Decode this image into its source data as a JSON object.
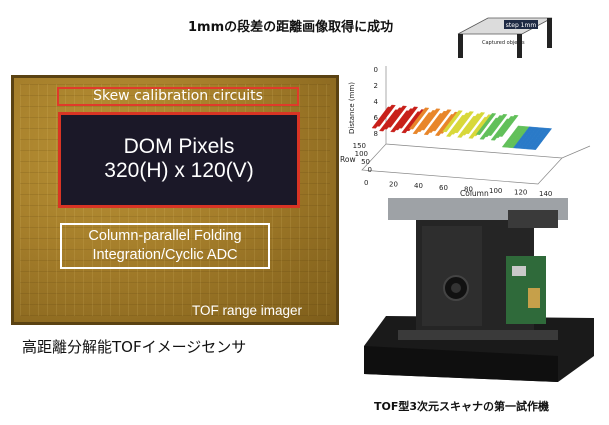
{
  "heading": "1mmの段差の距離画像取得に成功",
  "chip": {
    "skew_label": "Skew calibration circuits",
    "pixels_line1": "DOM Pixels",
    "pixels_line2": "320(H) x 120(V)",
    "adc_line1": "Column-parallel Folding",
    "adc_line2": "Integration/Cyclic ADC",
    "imager_label": "TOF range imager",
    "caption": "高距離分解能TOFイメージセンサ"
  },
  "inset": {
    "step_label": "step 1mm",
    "objects_label": "Captured objects"
  },
  "chart_data": {
    "type": "surface",
    "zlabel": "Distance (mm)",
    "z_ticks": [
      "0",
      "2",
      "4",
      "6",
      "8"
    ],
    "ylabel": "Row",
    "y_ticks": [
      "150",
      "100",
      "50",
      "0"
    ],
    "xlabel": "Column",
    "x_ticks": [
      "0",
      "20",
      "40",
      "60",
      "80",
      "100",
      "120",
      "140"
    ],
    "colors": [
      "#c8201a",
      "#e8862a",
      "#d8d83a",
      "#62c05a",
      "#2a7ac8"
    ]
  },
  "scanner": {
    "caption": "TOF型3次元スキャナの第一試作機"
  }
}
